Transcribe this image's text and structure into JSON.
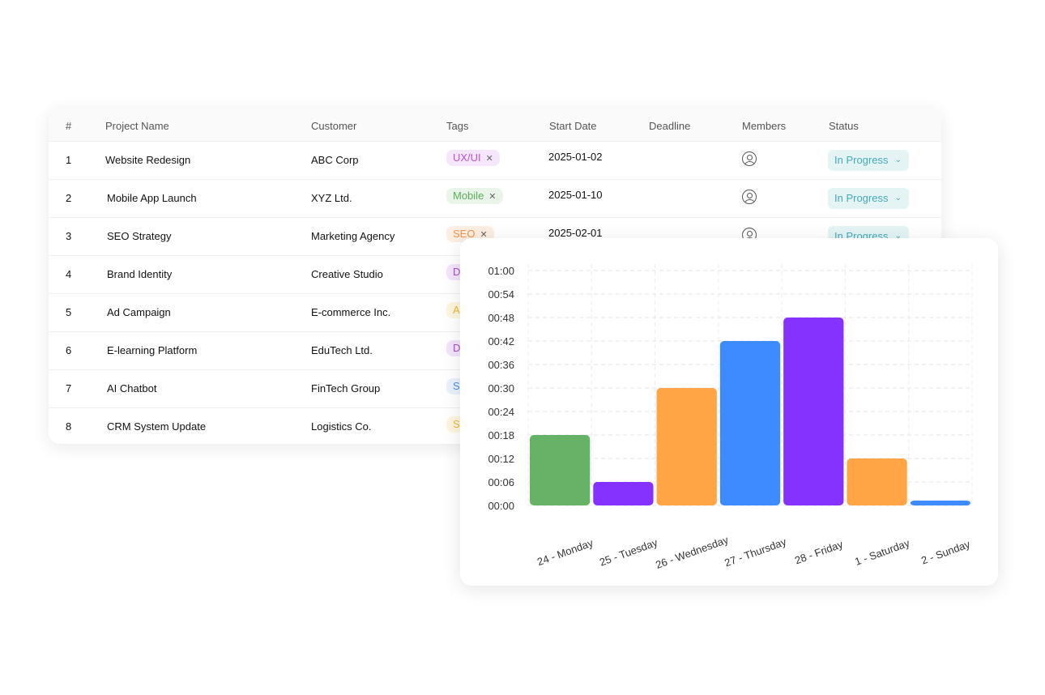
{
  "table": {
    "headers": [
      "#",
      "Project Name",
      "Customer",
      "Tags",
      "Start Date",
      "Deadline",
      "Members",
      "Status"
    ],
    "rows": [
      {
        "num": "1",
        "name": "Website Redesign",
        "customer": "ABC Corp",
        "tag": "UX/UI",
        "start": "2025-01-02",
        "deadline": "",
        "status": "In Progress"
      },
      {
        "num": "2",
        "name": "Mobile App Launch",
        "customer": "XYZ Ltd.",
        "tag": "Mobile",
        "start": "2025-01-10",
        "deadline": "",
        "status": "In Progress"
      },
      {
        "num": "3",
        "name": "SEO Strategy",
        "customer": "Marketing Agency",
        "tag": "SEO",
        "start": "2025-02-01",
        "deadline": "",
        "status": "In Progress"
      },
      {
        "num": "4",
        "name": "Brand Identity",
        "customer": "Creative Studio",
        "tag": "D",
        "start": "",
        "deadline": "",
        "status": ""
      },
      {
        "num": "5",
        "name": "Ad Campaign",
        "customer": "E-commerce Inc.",
        "tag": "A",
        "start": "",
        "deadline": "",
        "status": ""
      },
      {
        "num": "6",
        "name": "E-learning Platform",
        "customer": "EduTech Ltd.",
        "tag": "D",
        "start": "",
        "deadline": "",
        "status": ""
      },
      {
        "num": "7",
        "name": "AI Chatbot",
        "customer": "FinTech Group",
        "tag": "S",
        "start": "",
        "deadline": "",
        "status": ""
      },
      {
        "num": "8",
        "name": "CRM System Update",
        "customer": "Logistics Co.",
        "tag": "S",
        "start": "",
        "deadline": "",
        "status": ""
      }
    ],
    "tag_colors": {
      "UX/UI": {
        "bg": "#f6e6fb",
        "fg": "#b655d6"
      },
      "Mobile": {
        "bg": "#e9f5e9",
        "fg": "#5cae5c"
      },
      "SEO": {
        "bg": "#fdeee2",
        "fg": "#f2954c"
      },
      "D": {
        "bg": "#f3e4fb",
        "fg": "#a64fd1"
      },
      "A": {
        "bg": "#fdf6df",
        "fg": "#e5b93a"
      },
      "S1": {
        "bg": "#e9f1fd",
        "fg": "#4f8ee8"
      },
      "S2": {
        "bg": "#fdf6df",
        "fg": "#e5b93a"
      }
    },
    "member_icon": "user-circle-icon",
    "status_icon": "chevron-down-icon"
  },
  "chart_data": {
    "type": "bar",
    "categories": [
      "24 - Monday",
      "25 - Tuesday",
      "26 - Wednesday",
      "27 - Thursday",
      "28 - Friday",
      "1 - Saturday",
      "2 - Sunday"
    ],
    "values": [
      18,
      6,
      30,
      42,
      48,
      12,
      1
    ],
    "value_unit": "minutes",
    "colors": [
      "#66b266",
      "#8532ff",
      "#ffa545",
      "#3d8bff",
      "#8532ff",
      "#ffa545",
      "#3d8bff"
    ],
    "yticks": [
      "00:00",
      "00:06",
      "00:12",
      "00:18",
      "00:24",
      "00:30",
      "00:36",
      "00:42",
      "00:48",
      "00:54",
      "01:00"
    ],
    "ylim": [
      0,
      60
    ],
    "grid": true,
    "title": "",
    "xlabel": "",
    "ylabel": ""
  }
}
